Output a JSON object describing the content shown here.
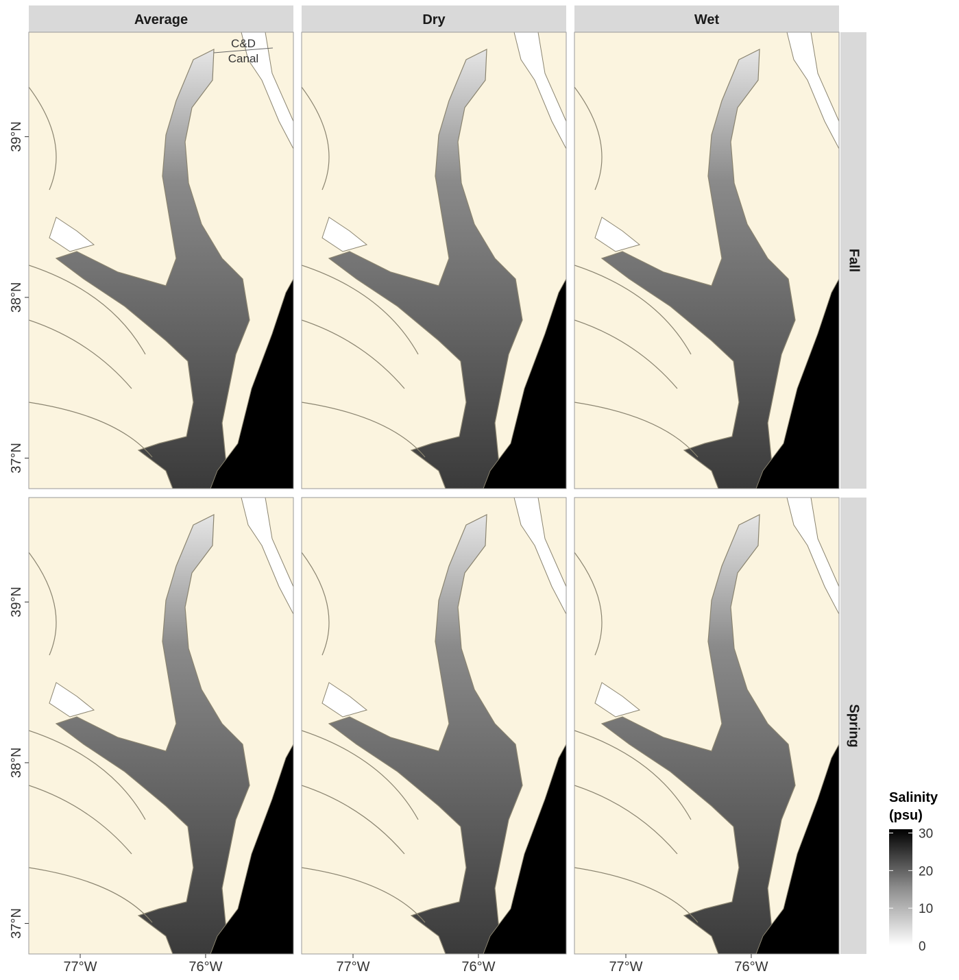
{
  "columns": [
    "Average",
    "Dry",
    "Wet"
  ],
  "rows": [
    "Fall",
    "Spring"
  ],
  "annotation": [
    "C&D",
    "Canal"
  ],
  "xlim": [
    -77.41,
    -75.3
  ],
  "ylim": [
    36.81,
    39.65
  ],
  "xticks": [
    {
      "value": -77,
      "label": "77°W"
    },
    {
      "value": -76,
      "label": "76°W"
    }
  ],
  "yticks": [
    {
      "value": 37,
      "label": "37°N"
    },
    {
      "value": 38,
      "label": "38°N"
    },
    {
      "value": 39,
      "label": "39°N"
    }
  ],
  "legend": {
    "title": [
      "Salinity",
      "(psu)"
    ],
    "lim": [
      0,
      31
    ],
    "ticks": [
      0,
      10,
      20,
      30
    ]
  }
}
